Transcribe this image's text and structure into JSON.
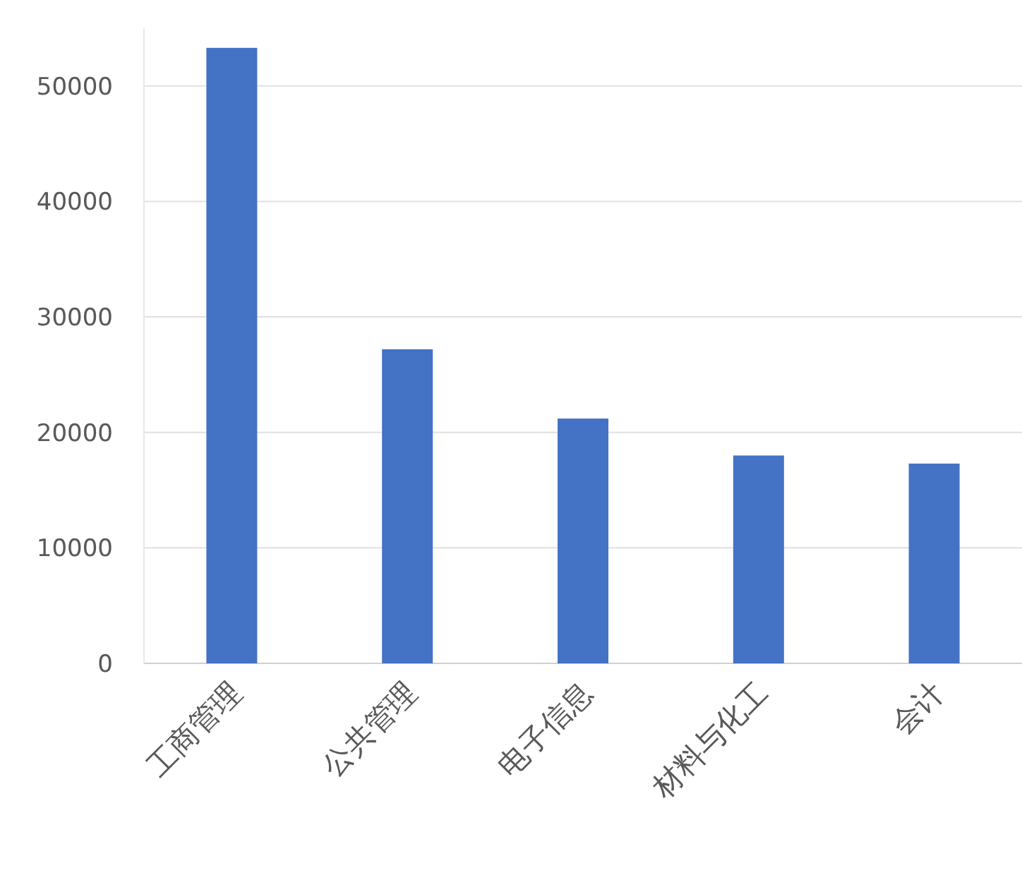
{
  "chart_data": {
    "type": "bar",
    "categories": [
      "工商管理",
      "公共管理",
      "电子信息",
      "材料与化工",
      "会计"
    ],
    "values": [
      53300,
      27200,
      21200,
      18000,
      17300
    ],
    "color": "#4472c4",
    "ylim": [
      0,
      55000
    ],
    "yticks": [
      0,
      10000,
      20000,
      30000,
      40000,
      50000
    ],
    "grid": "y"
  }
}
